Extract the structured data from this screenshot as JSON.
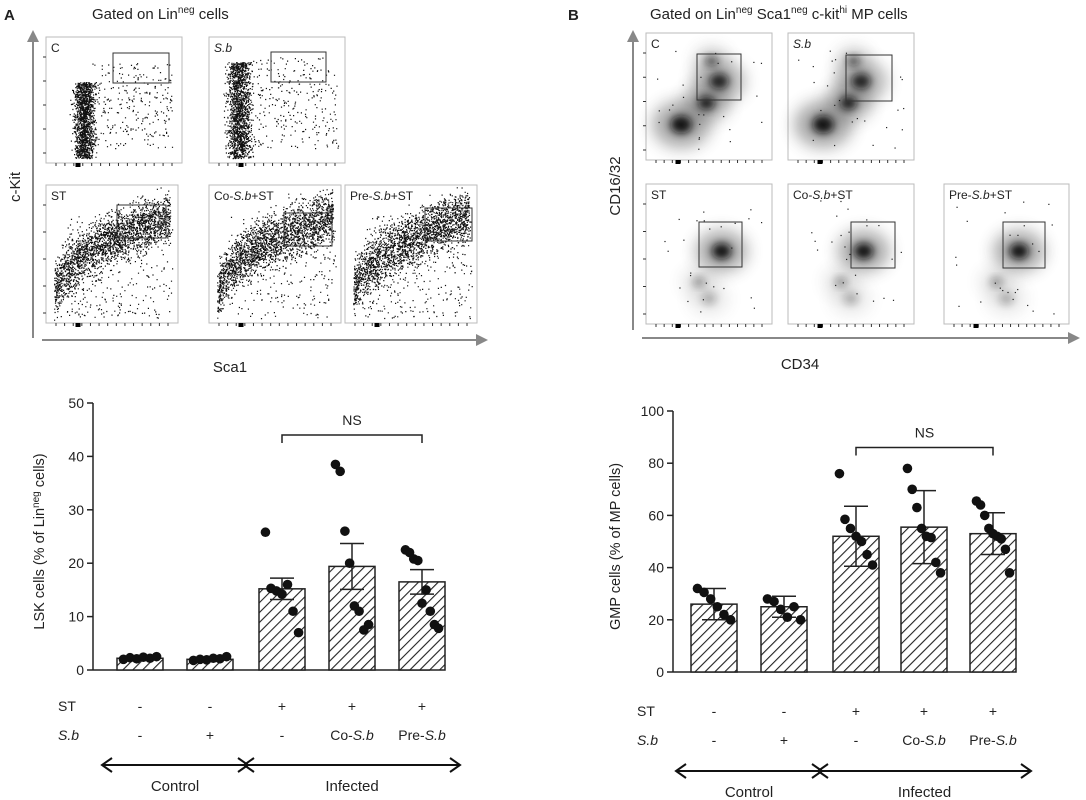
{
  "panels": [
    {
      "letter": "A",
      "gate_title": {
        "prefix": "Gated on Lin",
        "sup": "neg",
        "suffix": " cells"
      },
      "flow": {
        "x_label": "Sca1",
        "y_label": "c-Kit",
        "plots": [
          {
            "label": "C",
            "italic": false
          },
          {
            "label": "S.b",
            "italic": true
          },
          {
            "label": "ST",
            "italic": false
          },
          {
            "label": "Co-S.b+ST",
            "italic": false
          },
          {
            "label": "Pre-S.b+ST",
            "italic": false
          }
        ]
      }
    },
    {
      "letter": "B",
      "gate_title": {
        "prefix": "Gated on Lin",
        "sup": "neg",
        "mid1": " Sca1",
        "sup2": "neg",
        "mid2": " c-kit",
        "sup3": "hi",
        "suffix": " MP cells"
      },
      "flow": {
        "x_label": "CD34",
        "y_label": "CD16/32",
        "plots": [
          {
            "label": "C",
            "italic": false
          },
          {
            "label": "S.b",
            "italic": true
          },
          {
            "label": "ST",
            "italic": false
          },
          {
            "label": "Co-S.b+ST",
            "italic": false
          },
          {
            "label": "Pre-S.b+ST",
            "italic": false
          }
        ]
      }
    }
  ],
  "chart_data": [
    {
      "type": "bar",
      "title": "",
      "ylabel_prefix": "LSK cells (% of Lin",
      "ylabel_sup": "neg",
      "ylabel_suffix": " cells)",
      "ylim": [
        0,
        50
      ],
      "yticks": [
        0,
        10,
        20,
        30,
        40,
        50
      ],
      "categories": [
        "Control -S.b",
        "Control +S.b",
        "ST",
        "Co-S.b+ST",
        "Pre-S.b+ST"
      ],
      "means": [
        2.2,
        2.0,
        15.2,
        19.4,
        16.5
      ],
      "sem": [
        0.3,
        0.3,
        2.0,
        4.3,
        2.3
      ],
      "points": [
        [
          2.0,
          2.3,
          2.1,
          2.4,
          2.2,
          2.5
        ],
        [
          1.8,
          2.0,
          1.9,
          2.2,
          2.1,
          2.5
        ],
        [
          25.8,
          15.3,
          14.8,
          14.2,
          16.0,
          11.0,
          7.0
        ],
        [
          38.5,
          37.2,
          26.0,
          20.0,
          12.0,
          11.0,
          7.5,
          8.5
        ],
        [
          22.5,
          22.0,
          20.8,
          20.5,
          12.5,
          15.0,
          11.0,
          8.5,
          7.8
        ]
      ],
      "significance": {
        "label": "NS",
        "from": 2,
        "to": 4,
        "level": 44
      },
      "rows": [
        {
          "label": "ST",
          "italic": false,
          "values": [
            "-",
            "-",
            "+",
            "+",
            "+"
          ]
        },
        {
          "label": "S.b",
          "italic": true,
          "values": [
            "-",
            "+",
            "-",
            "Co-S.b",
            "Pre-S.b"
          ]
        }
      ],
      "groups": [
        {
          "label": "Control",
          "from": 0,
          "to": 1
        },
        {
          "label": "Infected",
          "from": 2,
          "to": 4
        }
      ]
    },
    {
      "type": "bar",
      "title": "",
      "ylabel_prefix": "GMP cells (% of MP cells)",
      "ylabel_sup": "",
      "ylabel_suffix": "",
      "ylim": [
        0,
        100
      ],
      "yticks": [
        0,
        20,
        40,
        60,
        80,
        100
      ],
      "categories": [
        "Control -S.b",
        "Control +S.b",
        "ST",
        "Co-S.b+ST",
        "Pre-S.b+ST"
      ],
      "means": [
        26.0,
        25.0,
        52.0,
        55.5,
        53.0
      ],
      "sem": [
        6.0,
        4.0,
        11.5,
        14.0,
        8.0
      ],
      "points": [
        [
          32.0,
          30.5,
          28.0,
          25.0,
          22.0,
          20.0
        ],
        [
          28.0,
          27.0,
          24.0,
          21.0,
          25.0,
          20.0
        ],
        [
          76.0,
          58.5,
          55.0,
          52.0,
          50.0,
          45.0,
          41.0
        ],
        [
          78.0,
          70.0,
          63.0,
          55.0,
          52.0,
          51.5,
          42.0,
          38.0
        ],
        [
          65.5,
          64.0,
          60.0,
          55.0,
          53.0,
          52.0,
          51.0,
          47.0,
          38.0
        ]
      ],
      "significance": {
        "label": "NS",
        "from": 2,
        "to": 4,
        "level": 86
      },
      "rows": [
        {
          "label": "ST",
          "italic": false,
          "values": [
            "-",
            "-",
            "+",
            "+",
            "+"
          ]
        },
        {
          "label": "S.b",
          "italic": true,
          "values": [
            "-",
            "+",
            "-",
            "Co-S.b",
            "Pre-S.b"
          ]
        }
      ],
      "groups": [
        {
          "label": "Control",
          "from": 0,
          "to": 1
        },
        {
          "label": "Infected",
          "from": 2,
          "to": 4
        }
      ]
    }
  ]
}
